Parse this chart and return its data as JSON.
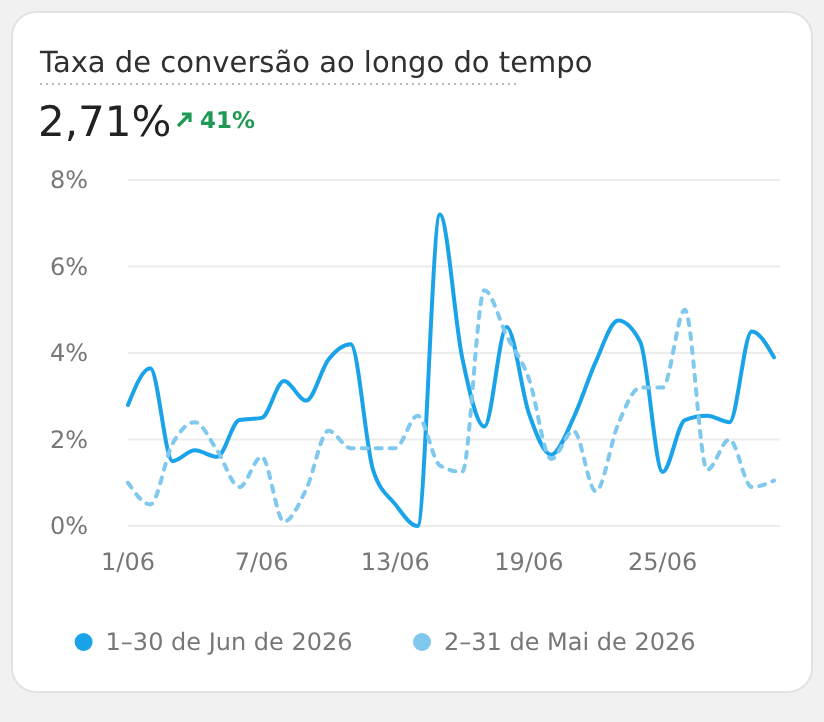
{
  "chart_data": {
    "type": "line",
    "title": "Taxa de conversão ao longo do tempo",
    "annotations": [
      "2,71%",
      "41%"
    ],
    "categories": [
      "1/06",
      null,
      null,
      null,
      null,
      null,
      "7/06",
      null,
      null,
      null,
      null,
      null,
      "13/06",
      null,
      null,
      null,
      null,
      null,
      "19/06",
      null,
      null,
      null,
      null,
      null,
      "25/06",
      null,
      null,
      null,
      null,
      null
    ],
    "ylim": [
      0,
      8
    ],
    "yticks": [
      {
        "value": 0,
        "label": "0%"
      },
      {
        "value": 2,
        "label": "2%"
      },
      {
        "value": 4,
        "label": "4%"
      },
      {
        "value": 6,
        "label": "6%"
      },
      {
        "value": 8,
        "label": "8%"
      }
    ],
    "grid": "y",
    "legend": "bottom",
    "marker": "none",
    "series": [
      {
        "name": "1–30 de Jun de 2026",
        "color": "#1aa3e8",
        "line_style": "solid",
        "values": [
          2.8,
          3.65,
          1.5,
          1.75,
          1.6,
          2.45,
          2.5,
          3.35,
          2.9,
          3.85,
          4.2,
          1.3,
          0.5,
          0,
          7.2,
          3.9,
          2.3,
          4.6,
          2.6,
          1.65,
          2.5,
          3.8,
          4.75,
          4.25,
          1.25,
          2.45,
          2.55,
          2.4,
          4.5,
          3.9
        ]
      },
      {
        "name": "2–31 de Mai de 2026",
        "color": "#7fc8ee",
        "line_style": "dashed",
        "values": [
          1,
          0.5,
          1.9,
          2.4,
          1.75,
          0.9,
          1.6,
          0.1,
          0.85,
          2.2,
          1.8,
          1.8,
          1.8,
          2.55,
          1.4,
          1.25,
          5.45,
          4.4,
          3.4,
          1.55,
          2.2,
          0.8,
          2.35,
          3.2,
          3.2,
          5,
          1.3,
          2,
          0.9,
          1.05
        ]
      }
    ]
  }
}
